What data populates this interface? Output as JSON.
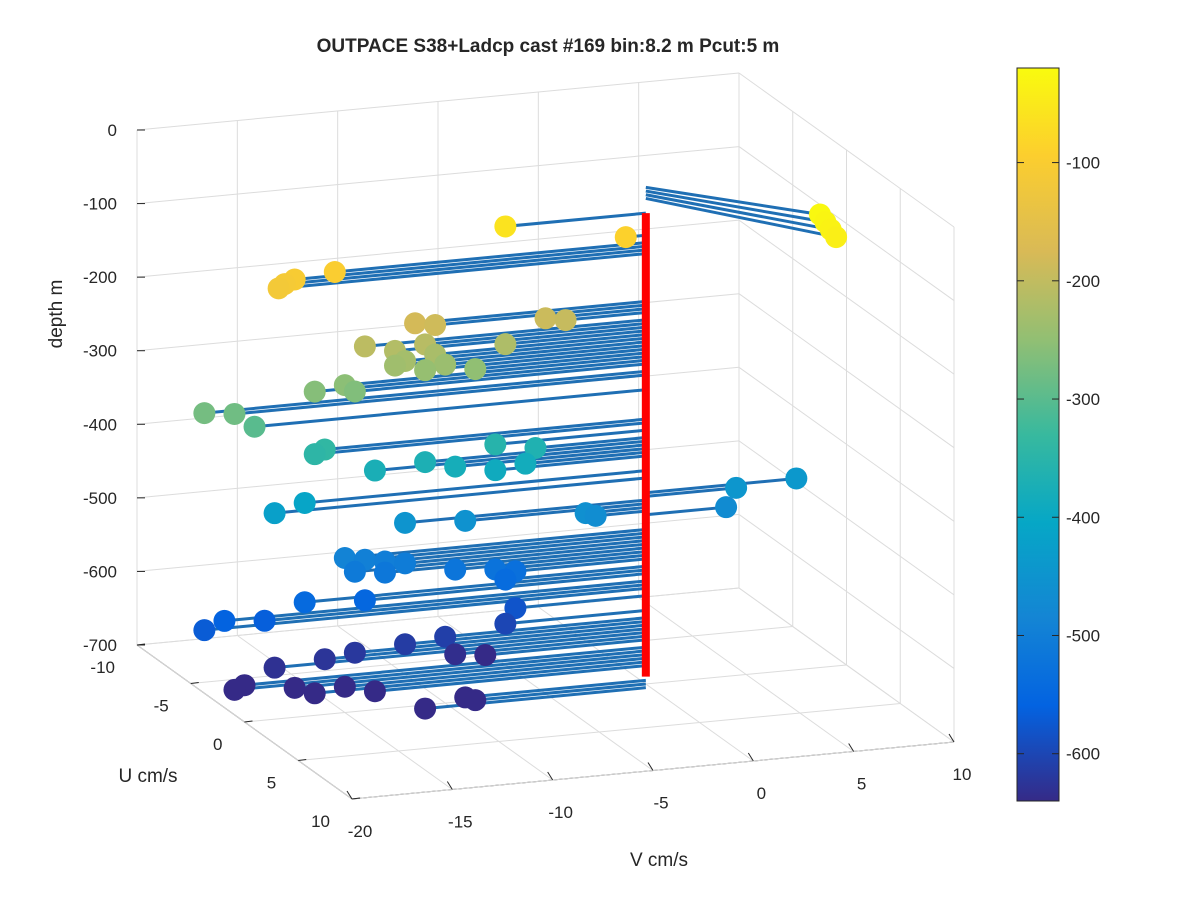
{
  "chart_data": {
    "type": "3d-quiver-scatter",
    "title": "OUTPACE S38+Ladcp cast #169 bin:8.2 m  Pcut:5 m",
    "xlabel": "V cm/s",
    "ylabel": "U cm/s",
    "zlabel": "depth m",
    "xlim": [
      -20,
      10
    ],
    "ylim": [
      -10,
      10
    ],
    "zlim": [
      -700,
      0
    ],
    "xticks": [
      "-20",
      "-15",
      "-10",
      "-5",
      "0",
      "5",
      "10"
    ],
    "yticks": [
      "-10",
      "-5",
      "0",
      "5",
      "10"
    ],
    "zticks": [
      "0",
      "-100",
      "-200",
      "-300",
      "-400",
      "-500",
      "-600",
      "-700"
    ],
    "colorbar_ticks": [
      "-100",
      "-200",
      "-300",
      "-400",
      "-500",
      "-600"
    ],
    "colorbar_range": [
      -640,
      -20
    ],
    "colormap": "parula",
    "grid": "on",
    "stem": {
      "color": "#ff0000",
      "depth_top": -60,
      "depth_bottom": -690
    },
    "vector_color": "#1f6fb4",
    "vectors_note": "Each point: velocity vector (V, U) drawn from the stem at that depth, marker colored by depth.",
    "points": [
      {
        "depth": -25,
        "v": 6.0,
        "u": 5.0
      },
      {
        "depth": -30,
        "v": 6.0,
        "u": 5.5
      },
      {
        "depth": -35,
        "v": 6.0,
        "u": 6.0
      },
      {
        "depth": -40,
        "v": 6.0,
        "u": 6.5
      },
      {
        "depth": -60,
        "v": -7.0,
        "u": 0.0
      },
      {
        "depth": -90,
        "v": -1.0,
        "u": 0.0
      },
      {
        "depth": -100,
        "v": -15.5,
        "u": 0.0
      },
      {
        "depth": -105,
        "v": -17.5,
        "u": 0.0
      },
      {
        "depth": -110,
        "v": -18.0,
        "u": 0.0
      },
      {
        "depth": -115,
        "v": -18.3,
        "u": 0.0
      },
      {
        "depth": -180,
        "v": -11.5,
        "u": 0.0
      },
      {
        "depth": -185,
        "v": -10.5,
        "u": 0.0
      },
      {
        "depth": -190,
        "v": -5.0,
        "u": 0.0
      },
      {
        "depth": -195,
        "v": -4.0,
        "u": 0.0
      },
      {
        "depth": -205,
        "v": -14.0,
        "u": 0.0
      },
      {
        "depth": -210,
        "v": -11.0,
        "u": 0.0
      },
      {
        "depth": -215,
        "v": -12.5,
        "u": 0.0
      },
      {
        "depth": -220,
        "v": -7.0,
        "u": 0.0
      },
      {
        "depth": -225,
        "v": -10.5,
        "u": 0.0
      },
      {
        "depth": -230,
        "v": -12.0,
        "u": 0.0
      },
      {
        "depth": -235,
        "v": -12.5,
        "u": 0.0
      },
      {
        "depth": -240,
        "v": -10.0,
        "u": 0.0
      },
      {
        "depth": -245,
        "v": -11.0,
        "u": 0.0
      },
      {
        "depth": -250,
        "v": -8.5,
        "u": 0.0
      },
      {
        "depth": -255,
        "v": -15.0,
        "u": 0.0
      },
      {
        "depth": -260,
        "v": -16.5,
        "u": 0.0
      },
      {
        "depth": -265,
        "v": -14.5,
        "u": 0.0
      },
      {
        "depth": -275,
        "v": -22.0,
        "u": 0.0
      },
      {
        "depth": -280,
        "v": -20.5,
        "u": 0.0
      },
      {
        "depth": -300,
        "v": -19.5,
        "u": 0.0
      },
      {
        "depth": -340,
        "v": -16.0,
        "u": 0.0
      },
      {
        "depth": -345,
        "v": -16.5,
        "u": 0.0
      },
      {
        "depth": -355,
        "v": -7.5,
        "u": 0.0
      },
      {
        "depth": -365,
        "v": -5.5,
        "u": 0.0
      },
      {
        "depth": -370,
        "v": -11.0,
        "u": 0.0
      },
      {
        "depth": -375,
        "v": -13.5,
        "u": 0.0
      },
      {
        "depth": -380,
        "v": -9.5,
        "u": 0.0
      },
      {
        "depth": -385,
        "v": -6.0,
        "u": 0.0
      },
      {
        "depth": -390,
        "v": -7.5,
        "u": 0.0
      },
      {
        "depth": -410,
        "v": -17.0,
        "u": 0.0
      },
      {
        "depth": -420,
        "v": -18.5,
        "u": 0.0
      },
      {
        "depth": -440,
        "v": 7.5,
        "u": 0.0
      },
      {
        "depth": -445,
        "v": 4.5,
        "u": 0.0
      },
      {
        "depth": -450,
        "v": -12.0,
        "u": 0.0
      },
      {
        "depth": -455,
        "v": -9.0,
        "u": 0.0
      },
      {
        "depth": -460,
        "v": -3.0,
        "u": 0.0
      },
      {
        "depth": -465,
        "v": -2.5,
        "u": 0.0
      },
      {
        "depth": -470,
        "v": 4.0,
        "u": 0.0
      },
      {
        "depth": -490,
        "v": -15.0,
        "u": 0.0
      },
      {
        "depth": -495,
        "v": -14.0,
        "u": 0.0
      },
      {
        "depth": -500,
        "v": -13.0,
        "u": 0.0
      },
      {
        "depth": -505,
        "v": -12.0,
        "u": 0.0
      },
      {
        "depth": -510,
        "v": -14.5,
        "u": 0.0
      },
      {
        "depth": -515,
        "v": -13.0,
        "u": 0.0
      },
      {
        "depth": -520,
        "v": -9.5,
        "u": 0.0
      },
      {
        "depth": -525,
        "v": -7.5,
        "u": 0.0
      },
      {
        "depth": -530,
        "v": -6.5,
        "u": 0.0
      },
      {
        "depth": -540,
        "v": -7.0,
        "u": 0.0
      },
      {
        "depth": -545,
        "v": -17.0,
        "u": 0.0
      },
      {
        "depth": -550,
        "v": -14.0,
        "u": 0.0
      },
      {
        "depth": -560,
        "v": -21.0,
        "u": 0.0
      },
      {
        "depth": -565,
        "v": -19.0,
        "u": 0.0
      },
      {
        "depth": -570,
        "v": -22.0,
        "u": 0.0
      },
      {
        "depth": -580,
        "v": -6.5,
        "u": 0.0
      },
      {
        "depth": -600,
        "v": -7.0,
        "u": 0.0
      },
      {
        "depth": -610,
        "v": -10.0,
        "u": 0.0
      },
      {
        "depth": -615,
        "v": -12.0,
        "u": 0.0
      },
      {
        "depth": -620,
        "v": -14.5,
        "u": 0.0
      },
      {
        "depth": -625,
        "v": -16.0,
        "u": 0.0
      },
      {
        "depth": -630,
        "v": -18.5,
        "u": 0.0
      },
      {
        "depth": -635,
        "v": -9.5,
        "u": 0.0
      },
      {
        "depth": -640,
        "v": -8.0,
        "u": 0.0
      },
      {
        "depth": -650,
        "v": -20.0,
        "u": 0.0
      },
      {
        "depth": -655,
        "v": -20.5,
        "u": 0.0
      },
      {
        "depth": -660,
        "v": -17.5,
        "u": 0.0
      },
      {
        "depth": -665,
        "v": -15.0,
        "u": 0.0
      },
      {
        "depth": -670,
        "v": -16.5,
        "u": 0.0
      },
      {
        "depth": -675,
        "v": -13.5,
        "u": 0.0
      },
      {
        "depth": -695,
        "v": -9.0,
        "u": 0.0
      },
      {
        "depth": -700,
        "v": -8.5,
        "u": 0.0
      },
      {
        "depth": -705,
        "v": -11.0,
        "u": 0.0
      }
    ]
  }
}
